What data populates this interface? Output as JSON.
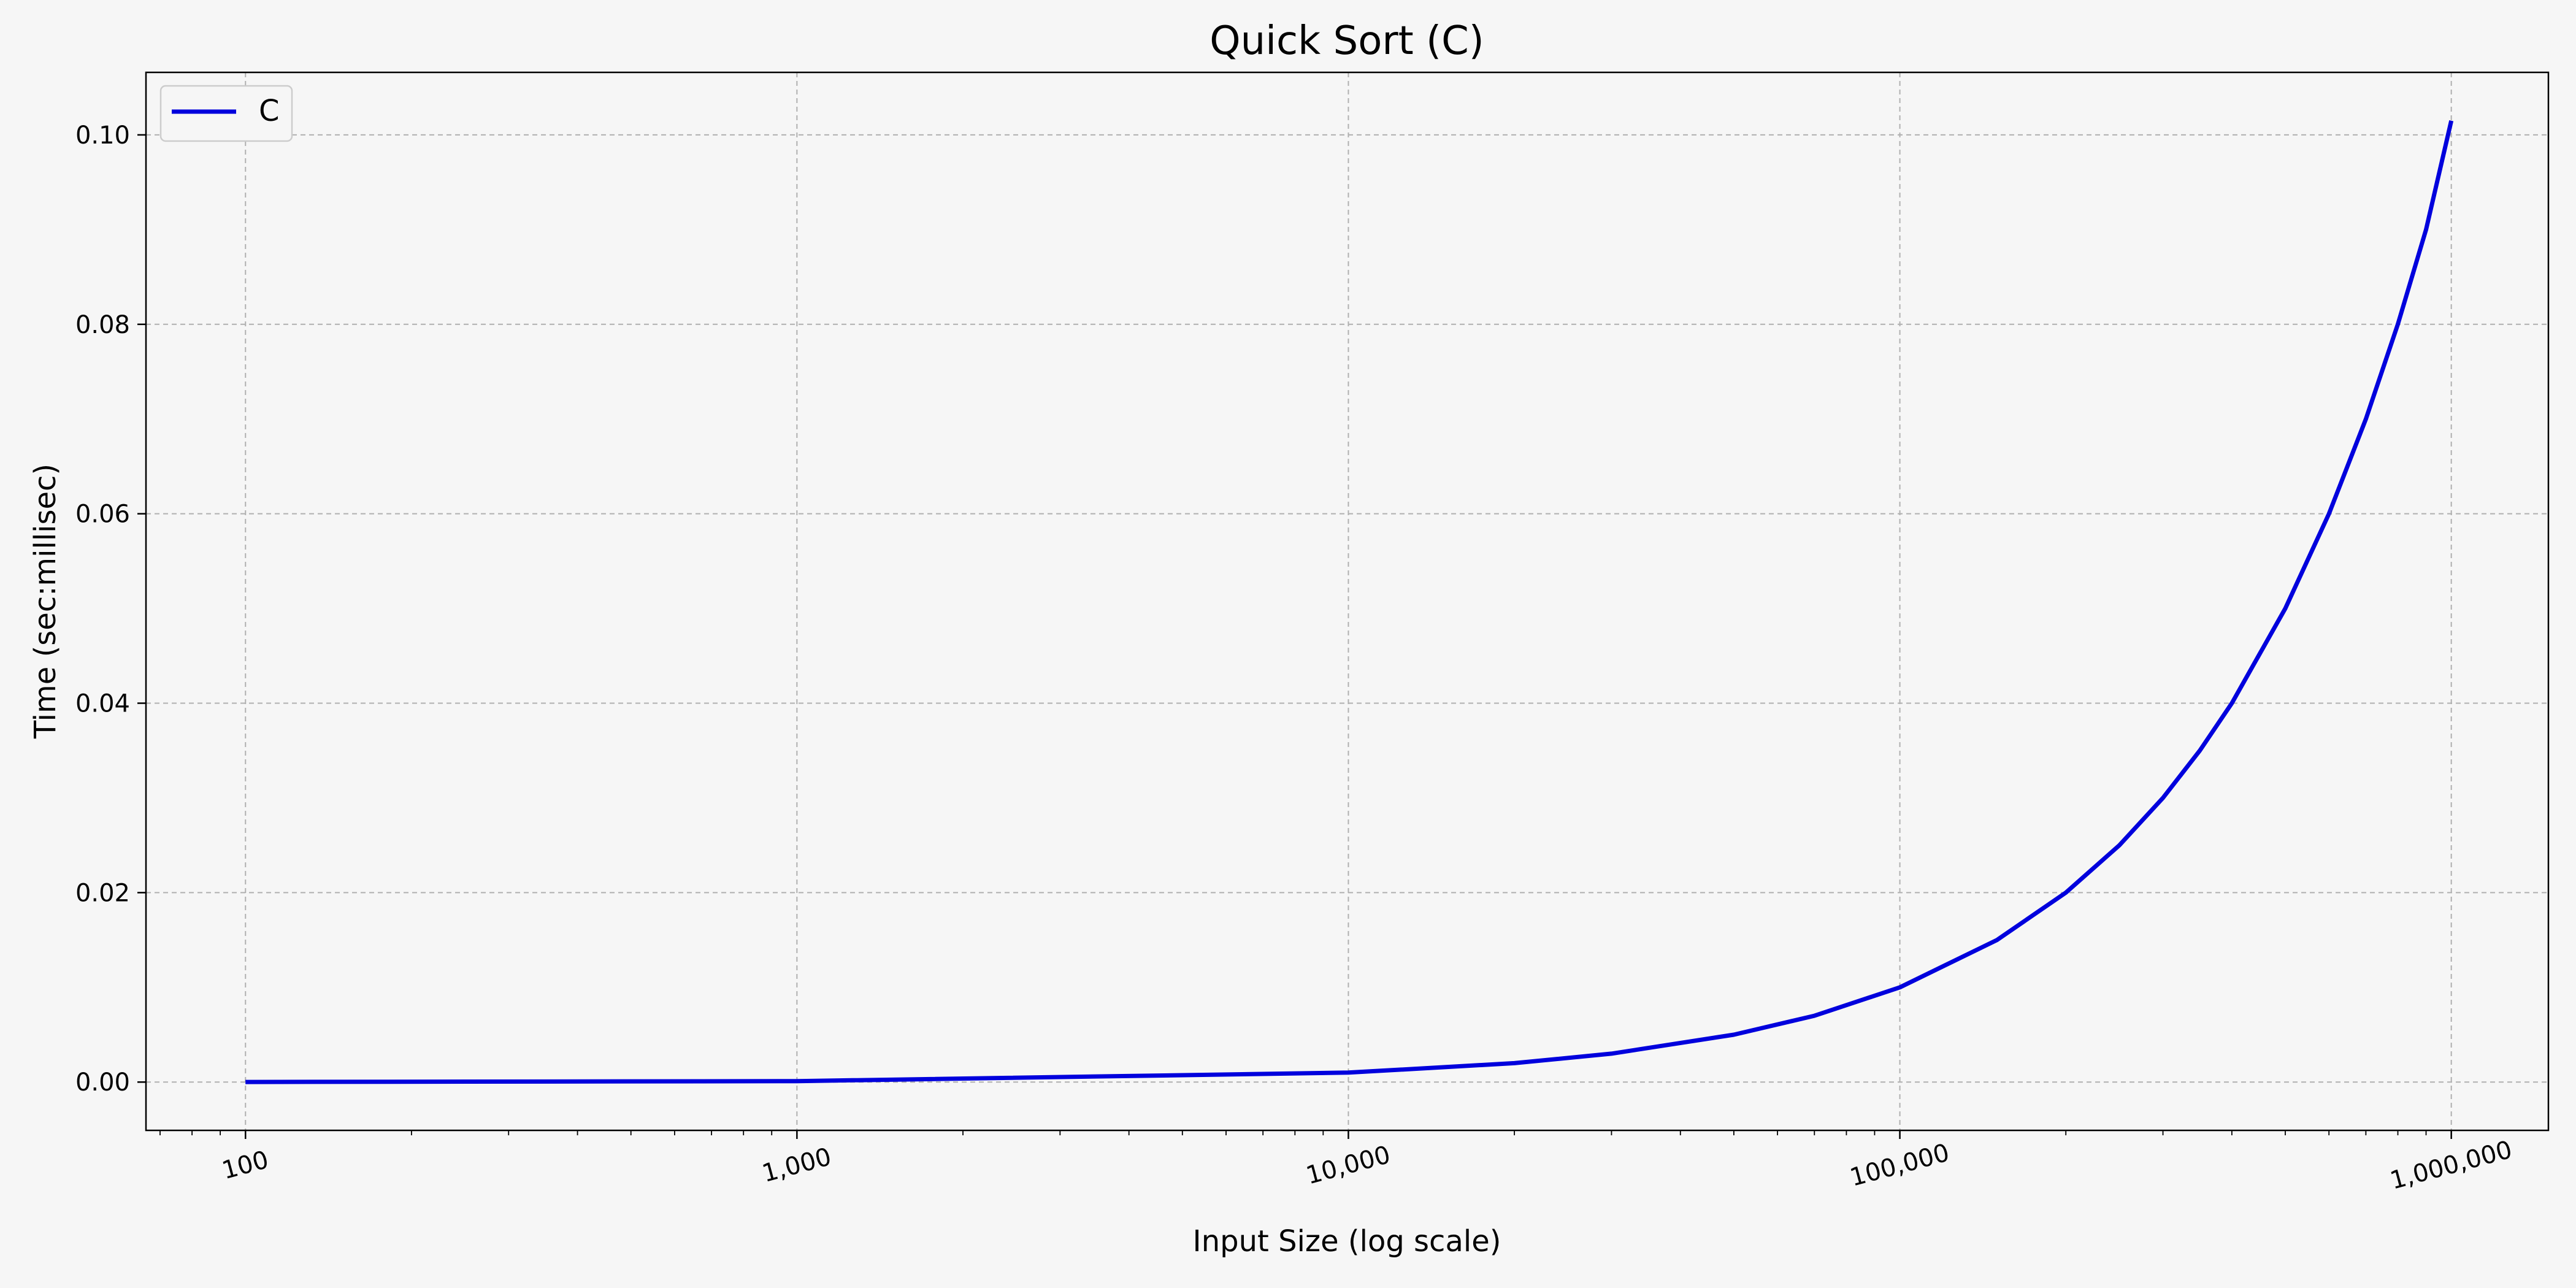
{
  "chart_data": {
    "type": "line",
    "title": "Quick Sort (C)",
    "xlabel": "Input Size (log scale)",
    "ylabel": "Time (sec:millisec)",
    "x_scale": "log",
    "xlim": [
      66,
      1500000
    ],
    "ylim": [
      -0.0051,
      0.1066
    ],
    "grid": true,
    "legend_position": "top-left",
    "x_ticks": [
      {
        "value": 100,
        "label": "100"
      },
      {
        "value": 1000,
        "label": "1,000"
      },
      {
        "value": 10000,
        "label": "10,000"
      },
      {
        "value": 100000,
        "label": "100,000"
      },
      {
        "value": 1000000,
        "label": "1,000,000"
      }
    ],
    "y_ticks": [
      {
        "value": 0.0,
        "label": "0.00"
      },
      {
        "value": 0.02,
        "label": "0.02"
      },
      {
        "value": 0.04,
        "label": "0.04"
      },
      {
        "value": 0.06,
        "label": "0.06"
      },
      {
        "value": 0.08,
        "label": "0.08"
      },
      {
        "value": 0.1,
        "label": "0.10"
      }
    ],
    "series": [
      {
        "name": "C",
        "color": "#0000dd",
        "x": [
          100,
          1000,
          10000,
          20000,
          30000,
          50000,
          70000,
          100000,
          150000,
          200000,
          250000,
          300000,
          350000,
          400000,
          500000,
          600000,
          700000,
          800000,
          900000,
          1000000
        ],
        "y": [
          1e-05,
          0.0001,
          0.001,
          0.002,
          0.003,
          0.005,
          0.007,
          0.01,
          0.015,
          0.02,
          0.025,
          0.03,
          0.035,
          0.04,
          0.05,
          0.06,
          0.07,
          0.08,
          0.09,
          0.1015
        ]
      }
    ]
  }
}
